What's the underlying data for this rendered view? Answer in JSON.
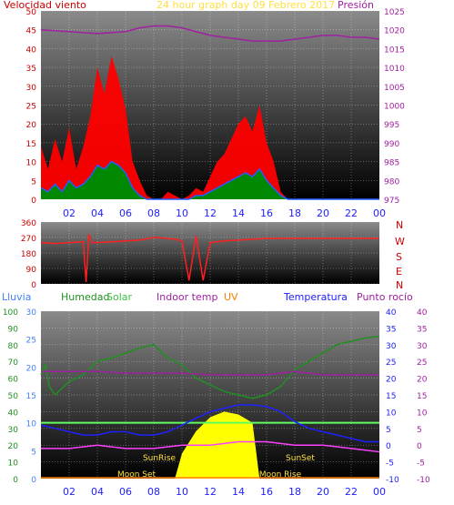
{
  "chart_data": [
    {
      "type": "line",
      "title": "24 hour graph day   09 Febrero 2017",
      "left_axis_title": "Velocidad viento",
      "right_axis_title": "Presión",
      "colors": {
        "bg_top": "#7a7a7a",
        "bg_bottom": "#000000",
        "wind_gust": "#ff0000",
        "wind_avg": "#2060ff",
        "wind_fill": "#008800",
        "pressure": "#a020a0",
        "title": "#ffe040",
        "axis_left": "#cc0000",
        "axis_right": "#a020a0"
      },
      "x_ticks": [
        "02",
        "04",
        "06",
        "08",
        "10",
        "12",
        "14",
        "16",
        "18",
        "20",
        "22",
        "00"
      ],
      "ylim_left": [
        0,
        50
      ],
      "yticks_left": [
        0,
        5,
        10,
        15,
        20,
        25,
        30,
        35,
        40,
        45,
        50
      ],
      "ylim_right": [
        975,
        1025
      ],
      "yticks_right": [
        975,
        980,
        985,
        990,
        995,
        1000,
        1005,
        1010,
        1015,
        1020,
        1025
      ],
      "pressure": {
        "x": [
          0,
          2,
          4,
          6,
          7,
          8,
          9,
          10,
          11,
          12,
          13,
          14,
          15,
          16,
          17,
          18,
          19,
          20,
          21,
          22,
          23,
          24
        ],
        "y": [
          1020,
          1019.5,
          1019,
          1019.5,
          1020.5,
          1021,
          1021,
          1020.5,
          1019.5,
          1018.5,
          1018,
          1017.5,
          1017,
          1017,
          1017,
          1017.5,
          1018,
          1018.5,
          1018.5,
          1018,
          1018,
          1017.5
        ]
      },
      "wind_gust": {
        "x": [
          0,
          0.5,
          1,
          1.5,
          2,
          2.5,
          3,
          3.5,
          4,
          4.5,
          5,
          5.5,
          6,
          6.5,
          7,
          7.5,
          8,
          8.5,
          9,
          9.5,
          10,
          10.5,
          11,
          11.5,
          12,
          12.5,
          13,
          13.5,
          14,
          14.5,
          15,
          15.5,
          16,
          16.5,
          17,
          17.5,
          18,
          19,
          20,
          21,
          22,
          23,
          24
        ],
        "y": [
          14,
          8,
          16,
          10,
          19,
          8,
          14,
          22,
          35,
          28,
          38,
          32,
          24,
          10,
          5,
          1,
          0,
          0,
          2,
          1,
          0,
          1,
          3,
          2,
          6,
          10,
          12,
          16,
          20,
          22,
          18,
          25,
          15,
          10,
          2,
          0,
          0,
          0,
          0,
          0,
          0,
          0,
          0
        ]
      },
      "wind_avg": {
        "x": [
          0,
          0.5,
          1,
          1.5,
          2,
          2.5,
          3,
          3.5,
          4,
          4.5,
          5,
          5.5,
          6,
          6.5,
          7,
          7.5,
          8,
          8.5,
          9,
          9.5,
          10,
          10.5,
          11,
          11.5,
          12,
          12.5,
          13,
          13.5,
          14,
          14.5,
          15,
          15.5,
          16,
          16.5,
          17,
          17.5,
          18,
          19,
          20,
          21,
          22,
          23,
          24
        ],
        "y": [
          3,
          2,
          4,
          2,
          5,
          3,
          4,
          6,
          9,
          8,
          10,
          9,
          7,
          3,
          1,
          0,
          0,
          0,
          0,
          0,
          0,
          0,
          1,
          1,
          2,
          3,
          4,
          5,
          6,
          7,
          6,
          8,
          5,
          3,
          1,
          0,
          0,
          0,
          0,
          0,
          0,
          0,
          0
        ]
      }
    },
    {
      "type": "line",
      "title": "",
      "right_axis_letters": [
        "N",
        "W",
        "S",
        "E",
        "N"
      ],
      "colors": {
        "direction": "#ff2020",
        "axis_left": "#cc0000",
        "axis_right": "#cc0000"
      },
      "x_ticks": [
        "02",
        "04",
        "06",
        "08",
        "10",
        "12",
        "14",
        "16",
        "18",
        "20",
        "22",
        "00"
      ],
      "ylim": [
        0,
        360
      ],
      "yticks": [
        0,
        90,
        180,
        270,
        360
      ],
      "direction": {
        "x": [
          0,
          1,
          2,
          3,
          3.2,
          3.4,
          3.6,
          4,
          5,
          6,
          7,
          8,
          9,
          9.5,
          10,
          10.5,
          11,
          11.5,
          12,
          13,
          14,
          15,
          16,
          17,
          18,
          19,
          20,
          21,
          22,
          23,
          24
        ],
        "y": [
          240,
          235,
          240,
          245,
          10,
          290,
          240,
          240,
          245,
          250,
          255,
          270,
          265,
          260,
          250,
          20,
          280,
          20,
          240,
          250,
          255,
          260,
          265,
          265,
          265,
          265,
          265,
          265,
          265,
          265,
          265
        ]
      }
    },
    {
      "type": "line",
      "legend": [
        "Lluvia",
        "Humedad",
        "Solar",
        "Indoor temp",
        "UV",
        "Temperatura",
        "Punto rocío"
      ],
      "colors": {
        "rain": "#4080ff",
        "humidity": "#209020",
        "solar": "#60ff60",
        "indoor": "#a020a0",
        "uv": "#ff8000",
        "temp": "#2020ff",
        "dew": "#ff40ff",
        "sun": "#ffff00",
        "label": "#ffe040"
      },
      "x_ticks": [
        "02",
        "04",
        "06",
        "08",
        "10",
        "12",
        "14",
        "16",
        "18",
        "20",
        "22",
        "00"
      ],
      "ylim_humidity": [
        0,
        100
      ],
      "yticks_humidity": [
        0,
        10,
        20,
        30,
        40,
        50,
        60,
        70,
        80,
        90,
        100
      ],
      "ylim_rain": [
        0,
        30
      ],
      "yticks_rain": [
        0,
        5,
        10,
        15,
        20,
        25,
        30
      ],
      "ylim_temp": [
        -10,
        40
      ],
      "yticks_temp": [
        -10,
        -5,
        0,
        5,
        10,
        15,
        20,
        25,
        30,
        35,
        40
      ],
      "annotations": [
        "SunRise",
        "SunSet",
        "Moon Set",
        "Moon Rise"
      ],
      "humidity": {
        "x": [
          0,
          0.3,
          0.6,
          1,
          2,
          3,
          4,
          5,
          6,
          7,
          8,
          9,
          10,
          11,
          12,
          13,
          14,
          15,
          16,
          17,
          18,
          19,
          20,
          21,
          22,
          23,
          24
        ],
        "y": [
          62,
          68,
          55,
          50,
          58,
          62,
          70,
          72,
          75,
          78,
          80,
          72,
          68,
          60,
          56,
          52,
          50,
          48,
          50,
          55,
          65,
          70,
          75,
          80,
          82,
          84,
          85
        ]
      },
      "indoor_temp": {
        "x": [
          0,
          2,
          4,
          6,
          8,
          10,
          12,
          14,
          15,
          16,
          18,
          20,
          22,
          24
        ],
        "y": [
          22,
          22,
          22,
          21.5,
          21.5,
          21.5,
          21,
          21,
          21,
          21,
          22,
          21,
          21,
          21
        ]
      },
      "temperature": {
        "x": [
          0,
          1,
          2,
          3,
          4,
          5,
          6,
          7,
          8,
          9,
          10,
          11,
          12,
          13,
          14,
          15,
          16,
          17,
          18,
          19,
          20,
          21,
          22,
          23,
          24
        ],
        "y": [
          6,
          5,
          4,
          3,
          3,
          4,
          4,
          3,
          3,
          4,
          6,
          8,
          10,
          11,
          12,
          12,
          11.5,
          10,
          7,
          5,
          4,
          3,
          2,
          1,
          1
        ]
      },
      "dew_point": {
        "x": [
          0,
          2,
          4,
          6,
          8,
          10,
          12,
          14,
          16,
          18,
          20,
          22,
          24
        ],
        "y": [
          -1,
          -1,
          0,
          -1,
          -1,
          0,
          0,
          1,
          1,
          0,
          0,
          -1,
          -2
        ]
      },
      "solar": {
        "x": [
          0,
          24
        ],
        "y": [
          10,
          10
        ]
      },
      "sun_shape": {
        "x": [
          9.5,
          10,
          11,
          12,
          13,
          14,
          15,
          15.5
        ],
        "y": [
          0,
          18,
          34,
          44,
          48,
          46,
          40,
          0
        ]
      }
    }
  ]
}
